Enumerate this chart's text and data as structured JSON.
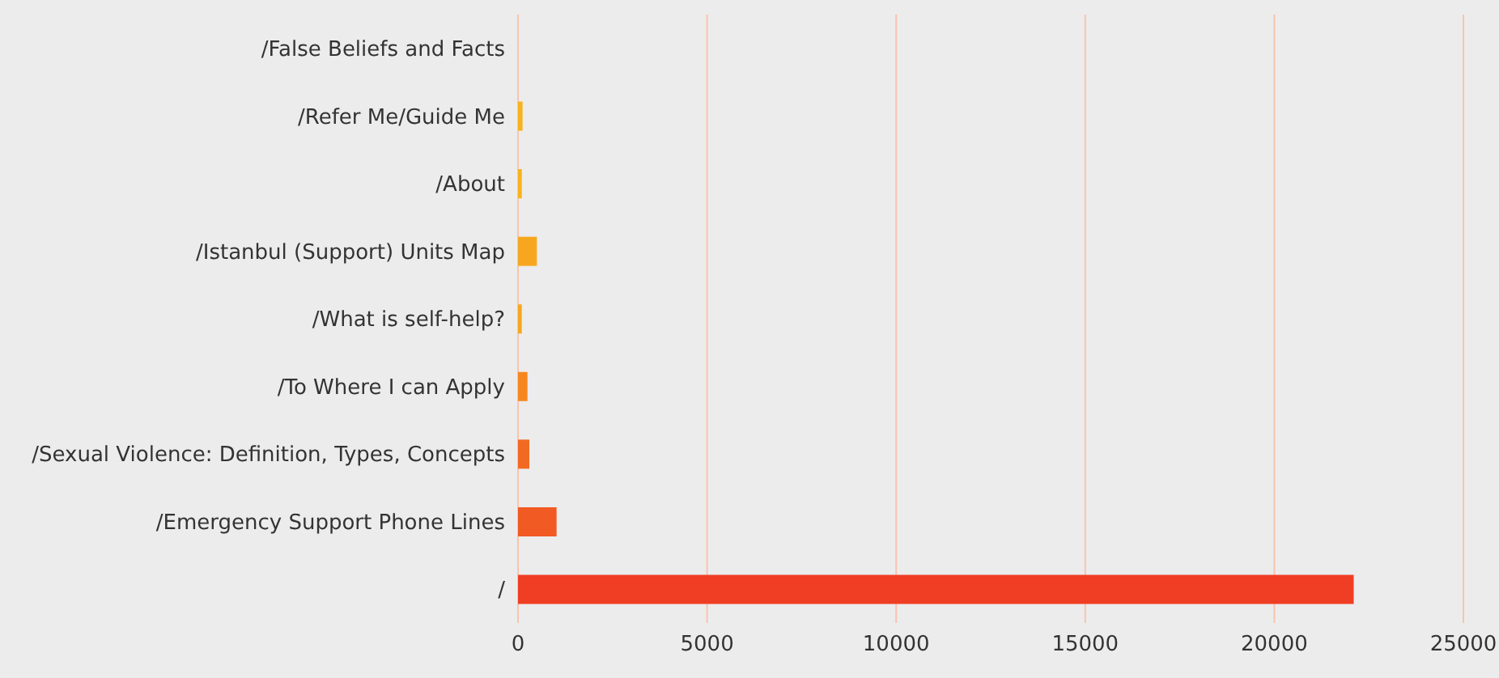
{
  "chart_data": {
    "type": "bar",
    "orientation": "horizontal",
    "categories": [
      "/False Beliefs and Facts",
      "/Refer Me/Guide Me",
      "/About",
      "/Istanbul (Support) Units Map",
      "/What is self-help?",
      "/To Where I can Apply",
      "/Sexual Violence: Definition, Types, Concepts",
      "/Emergency Support Phone Lines",
      "/"
    ],
    "values": [
      0,
      120,
      100,
      500,
      100,
      250,
      300,
      1020,
      22100
    ],
    "colors": [
      "#f9b21b",
      "#f9b21b",
      "#f9b21b",
      "#f7a71f",
      "#f7a71f",
      "#f6871f",
      "#f26a21",
      "#f15a22",
      "#ef3e24"
    ],
    "xlim": [
      0,
      25000
    ],
    "xticks": [
      0,
      5000,
      10000,
      15000,
      20000,
      25000
    ],
    "grid": "x"
  }
}
